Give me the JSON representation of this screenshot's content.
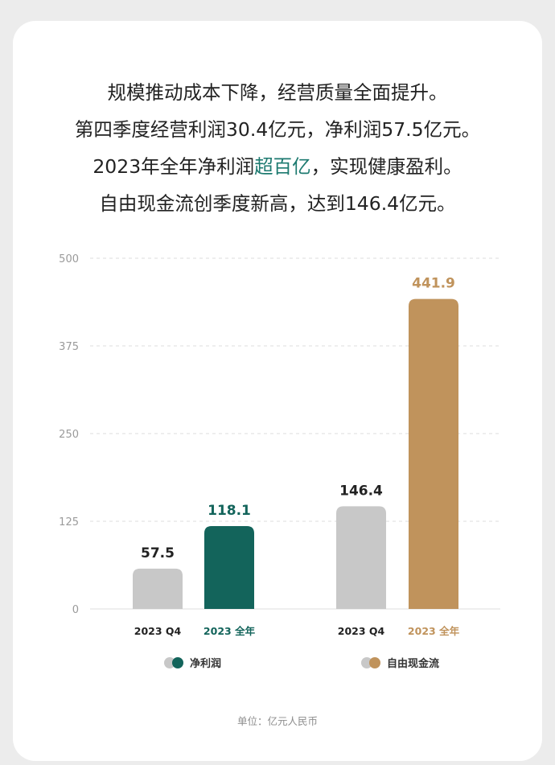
{
  "headline": {
    "line1": "规模推动成本下降，经营质量全面提升。",
    "line2": "第四季度经营利润30.4亿元，净利润57.5亿元。",
    "line3_pre": "2023年全年净利润",
    "line3_hl": "超百亿",
    "line3_post": "，实现健康盈利。",
    "line4": "自由现金流创季度新高，达到146.4亿元。"
  },
  "unit": "单位：亿元人民币",
  "chart_data": {
    "type": "bar",
    "ylim": [
      0,
      500
    ],
    "yticks": [
      0,
      125,
      250,
      375,
      500
    ],
    "ytick_labels": [
      "0",
      "125",
      "250",
      "375",
      "500"
    ],
    "grid": true,
    "groups": [
      {
        "name": "净利润",
        "accent": "#13645b",
        "bars": [
          {
            "category": "2023 Q4",
            "value": 57.5,
            "label": "57.5",
            "color": "#c8c8c8",
            "label_color": "#222222",
            "cat_color": "#222222"
          },
          {
            "category": "2023 全年",
            "value": 118.1,
            "label": "118.1",
            "color": "#13645b",
            "label_color": "#13645b",
            "cat_color": "#13645b"
          }
        ]
      },
      {
        "name": "自由现金流",
        "accent": "#c0935c",
        "bars": [
          {
            "category": "2023 Q4",
            "value": 146.4,
            "label": "146.4",
            "color": "#c8c8c8",
            "label_color": "#222222",
            "cat_color": "#222222"
          },
          {
            "category": "2023 全年",
            "value": 441.9,
            "label": "441.9",
            "color": "#c0935c",
            "label_color": "#c0935c",
            "cat_color": "#c0935c"
          }
        ]
      }
    ],
    "legend": [
      {
        "label": "净利润",
        "colors": [
          "#c8c8c8",
          "#13645b"
        ]
      },
      {
        "label": "自由现金流",
        "colors": [
          "#c8c8c8",
          "#c0935c"
        ]
      }
    ]
  }
}
